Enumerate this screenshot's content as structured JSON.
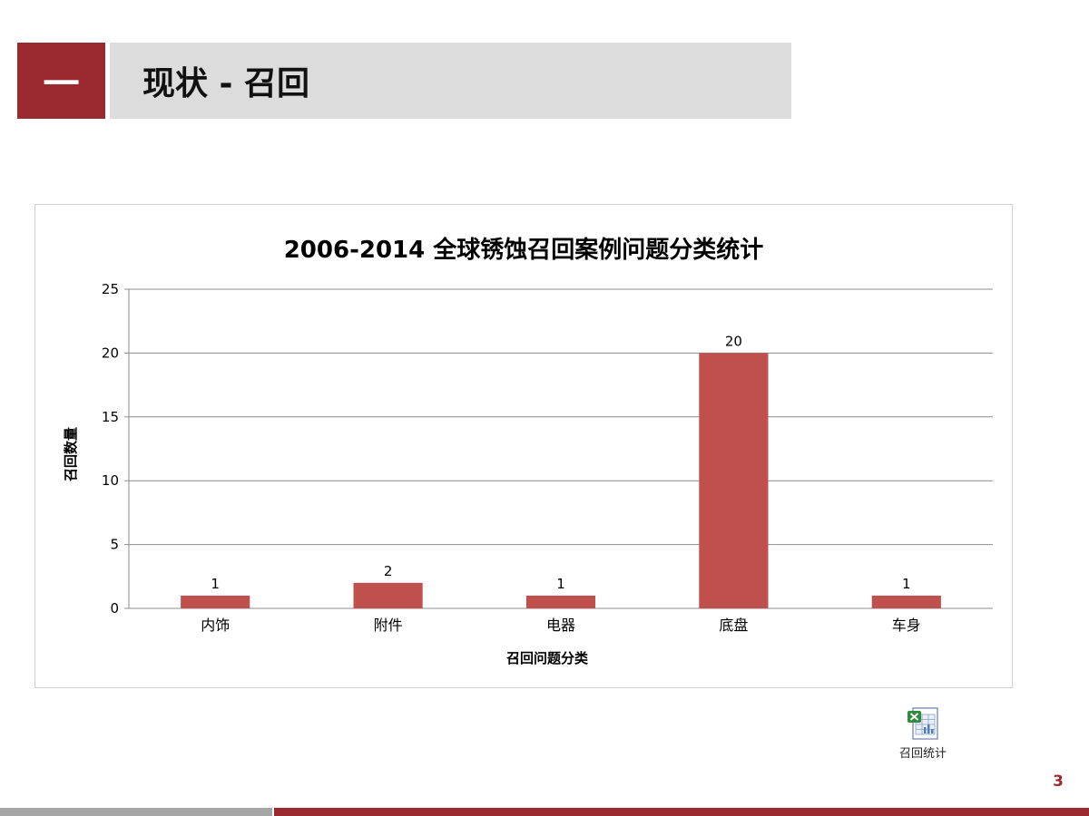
{
  "header": {
    "section_number": "一",
    "title": "现状 - 召回"
  },
  "chart_data": {
    "type": "bar",
    "title": "2006-2014 全球锈蚀召回案例问题分类统计",
    "xlabel": "召回问题分类",
    "ylabel": "召回数量",
    "categories": [
      "内饰",
      "附件",
      "电器",
      "底盘",
      "车身"
    ],
    "values": [
      1,
      2,
      1,
      20,
      1
    ],
    "ylim": [
      0,
      25
    ],
    "yticks": [
      0,
      5,
      10,
      15,
      20,
      25
    ],
    "grid": true,
    "data_labels": true,
    "bar_color": "#c0504d"
  },
  "embedded_object": {
    "icon": "excel-spreadsheet-icon",
    "label": "召回统计"
  },
  "footer": {
    "page_number": "3"
  },
  "colors": {
    "accent": "#9b2a30",
    "title_bar": "#dcdcdc"
  }
}
